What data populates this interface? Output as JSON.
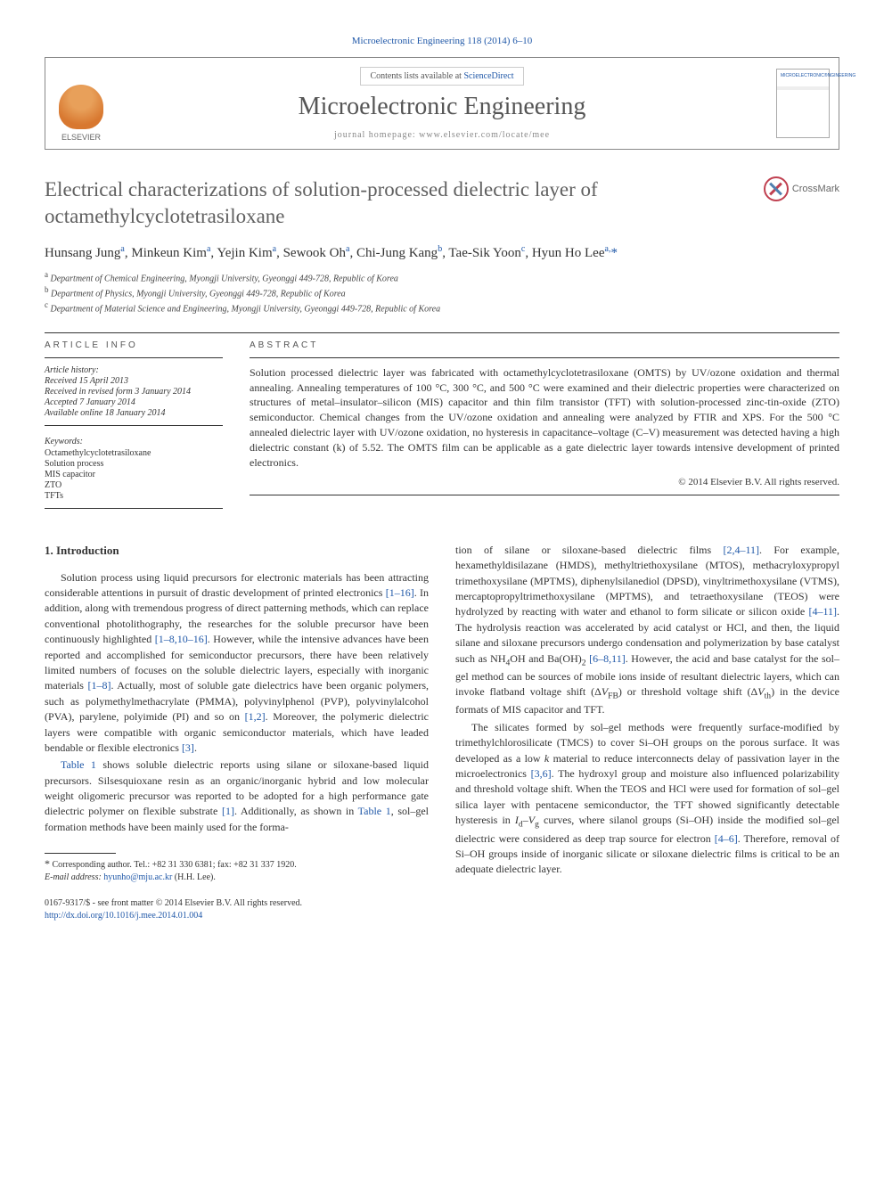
{
  "journal_ref": "Microelectronic Engineering 118 (2014) 6–10",
  "header": {
    "contents_prefix": "Contents lists available at ",
    "contents_link": "ScienceDirect",
    "journal_name": "Microelectronic Engineering",
    "homepage_label": "journal homepage: ",
    "homepage_url": "www.elsevier.com/locate/mee",
    "publisher": "ELSEVIER"
  },
  "crossmark": "CrossMark",
  "title": "Electrical characterizations of solution-processed dielectric layer of octamethylcyclotetrasiloxane",
  "authors_html": "Hunsang Jung<sup>a</sup>, Minkeun Kim<sup>a</sup>, Yejin Kim<sup>a</sup>, Sewook Oh<sup>a</sup>, Chi-Jung Kang<sup>b</sup>, Tae-Sik Yoon<sup>c</sup>, Hyun Ho Lee<sup>a,</sup><span class='corr'>*</span>",
  "affiliations": [
    {
      "sup": "a",
      "text": "Department of Chemical Engineering, Myongji University, Gyeonggi 449-728, Republic of Korea"
    },
    {
      "sup": "b",
      "text": "Department of Physics, Myongji University, Gyeonggi 449-728, Republic of Korea"
    },
    {
      "sup": "c",
      "text": "Department of Material Science and Engineering, Myongji University, Gyeonggi 449-728, Republic of Korea"
    }
  ],
  "info": {
    "label": "ARTICLE INFO",
    "history_label": "Article history:",
    "history": [
      "Received 15 April 2013",
      "Received in revised form 3 January 2014",
      "Accepted 7 January 2014",
      "Available online 18 January 2014"
    ],
    "keywords_label": "Keywords:",
    "keywords": [
      "Octamethylcyclotetrasiloxane",
      "Solution process",
      "MIS capacitor",
      "ZTO",
      "TFTs"
    ]
  },
  "abstract": {
    "label": "ABSTRACT",
    "text": "Solution processed dielectric layer was fabricated with octamethylcyclotetrasiloxane (OMTS) by UV/ozone oxidation and thermal annealing. Annealing temperatures of 100 °C, 300 °C, and 500 °C were examined and their dielectric properties were characterized on structures of metal–insulator–silicon (MIS) capacitor and thin film transistor (TFT) with solution-processed zinc-tin-oxide (ZTO) semiconductor. Chemical changes from the UV/ozone oxidation and annealing were analyzed by FTIR and XPS. For the 500 °C annealed dielectric layer with UV/ozone oxidation, no hysteresis in capacitance–voltage (C–V) measurement was detected having a high dielectric constant (k) of 5.52. The OMTS film can be applicable as a gate dielectric layer towards intensive development of printed electronics.",
    "copyright": "© 2014 Elsevier B.V. All rights reserved."
  },
  "body": {
    "section_heading": "1. Introduction",
    "col1_paragraphs": [
      "Solution process using liquid precursors for electronic materials has been attracting considerable attentions in pursuit of drastic development of printed electronics <a class='ref'>[1–16]</a>. In addition, along with tremendous progress of direct patterning methods, which can replace conventional photolithography, the researches for the soluble precursor have been continuously highlighted <a class='ref'>[1–8,10–16]</a>. However, while the intensive advances have been reported and accomplished for semiconductor precursors, there have been relatively limited numbers of focuses on the soluble dielectric layers, especially with inorganic materials <a class='ref'>[1–8]</a>. Actually, most of soluble gate dielectrics have been organic polymers, such as polymethylmethacrylate (PMMA), polyvinylphenol (PVP), polyvinylalcohol (PVA), parylene, polyimide (PI) and so on <a class='ref'>[1,2]</a>. Moreover, the polymeric dielectric layers were compatible with organic semiconductor materials, which have leaded bendable or flexible electronics <a class='ref'>[3]</a>.",
      "<span class='tableref'>Table 1</span> shows soluble dielectric reports using silane or siloxane-based liquid precursors. Silsesquioxane resin as an organic/inorganic hybrid and low molecular weight oligomeric precursor was reported to be adopted for a high performance gate dielectric polymer on flexible substrate <a class='ref'>[1]</a>. Additionally, as shown in <span class='tableref'>Table 1</span>, sol–gel formation methods have been mainly used for the forma-"
    ],
    "col2_paragraphs": [
      "tion of silane or siloxane-based dielectric films <a class='ref'>[2,4–11]</a>. For example, hexamethyldisilazane (HMDS), methyltriethoxysilane (MTOS), methacryloxypropyl trimethoxysilane (MPTMS), diphenylsilanediol (DPSD), vinyltrimethoxysilane (VTMS), mercaptopropyltrimethoxysilane (MPTMS), and tetraethoxysilane (TEOS) were hydrolyzed by reacting with water and ethanol to form silicate or silicon oxide <a class='ref'>[4–11]</a>. The hydrolysis reaction was accelerated by acid catalyst or HCl, and then, the liquid silane and siloxane precursors undergo condensation and polymerization by base catalyst such as NH<span class='subscript'>4</span>OH and Ba(OH)<span class='subscript'>2</span> <a class='ref'>[6–8,11]</a>. However, the acid and base catalyst for the sol–gel method can be sources of mobile ions inside of resultant dielectric layers, which can invoke flatband voltage shift (Δ<span class='ital'>V</span><span class='subscript'>FB</span>) or threshold voltage shift (Δ<span class='ital'>V</span><span class='subscript'>th</span>) in the device formats of MIS capacitor and TFT.",
      "The silicates formed by sol–gel methods were frequently surface-modified by trimethylchlorosilicate (TMCS) to cover Si–OH groups on the porous surface. It was developed as a low <span class='ital'>k</span> material to reduce interconnects delay of passivation layer in the microelectronics <a class='ref'>[3,6]</a>. The hydroxyl group and moisture also influenced polarizability and threshold voltage shift. When the TEOS and HCl were used for formation of sol–gel silica layer with pentacene semiconductor, the TFT showed significantly detectable hysteresis in <span class='ital'>I</span><span class='subscript'>d</span>–<span class='ital'>V</span><span class='subscript'>g</span> curves, where silanol groups (Si–OH) inside the modified sol–gel dielectric were considered as deep trap source for electron <a class='ref'>[4–6]</a>. Therefore, removal of Si–OH groups inside of inorganic silicate or siloxane dielectric films is critical to be an adequate dielectric layer."
    ]
  },
  "footnote": {
    "corr": "Corresponding author. Tel.: +82 31 330 6381; fax: +82 31 337 1920.",
    "email_label": "E-mail address:",
    "email": "hyunho@mju.ac.kr",
    "email_name": "(H.H. Lee)."
  },
  "footer": {
    "issn": "0167-9317/$ - see front matter © 2014 Elsevier B.V. All rights reserved.",
    "doi": "http://dx.doi.org/10.1016/j.mee.2014.01.004"
  },
  "colors": {
    "link": "#2058a8",
    "text": "#333333",
    "title_gray": "#606060",
    "border": "#888888"
  }
}
